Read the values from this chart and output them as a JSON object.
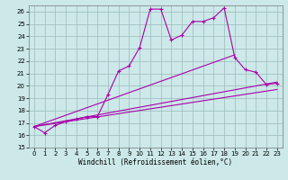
{
  "xlabel": "Windchill (Refroidissement éolien,°C)",
  "xlim": [
    -0.5,
    23.5
  ],
  "ylim": [
    15,
    26.5
  ],
  "yticks": [
    15,
    16,
    17,
    18,
    19,
    20,
    21,
    22,
    23,
    24,
    25,
    26
  ],
  "xticks": [
    0,
    1,
    2,
    3,
    4,
    5,
    6,
    7,
    8,
    9,
    10,
    11,
    12,
    13,
    14,
    15,
    16,
    17,
    18,
    19,
    20,
    21,
    22,
    23
  ],
  "bg_color": "#cce8e8",
  "line_color": "#aa00aa",
  "grid_color": "#99bbbb",
  "main_line": {
    "x": [
      0,
      1,
      2,
      3,
      4,
      5,
      6,
      7,
      8,
      9,
      10,
      11,
      12,
      13,
      14,
      15,
      16,
      17,
      18,
      19,
      20,
      21,
      22,
      23
    ],
    "y": [
      16.7,
      16.2,
      16.8,
      17.1,
      17.3,
      17.5,
      17.5,
      19.3,
      21.2,
      21.6,
      23.1,
      26.2,
      26.2,
      23.7,
      24.1,
      25.2,
      25.2,
      25.5,
      26.3,
      22.3,
      21.3,
      21.1,
      20.1,
      20.2
    ]
  },
  "ref_line1": {
    "x": [
      0,
      19
    ],
    "y": [
      16.7,
      22.5
    ]
  },
  "ref_line2": {
    "x": [
      0,
      23
    ],
    "y": [
      16.7,
      20.3
    ]
  },
  "ref_line3": {
    "x": [
      0,
      23
    ],
    "y": [
      16.7,
      19.7
    ]
  }
}
